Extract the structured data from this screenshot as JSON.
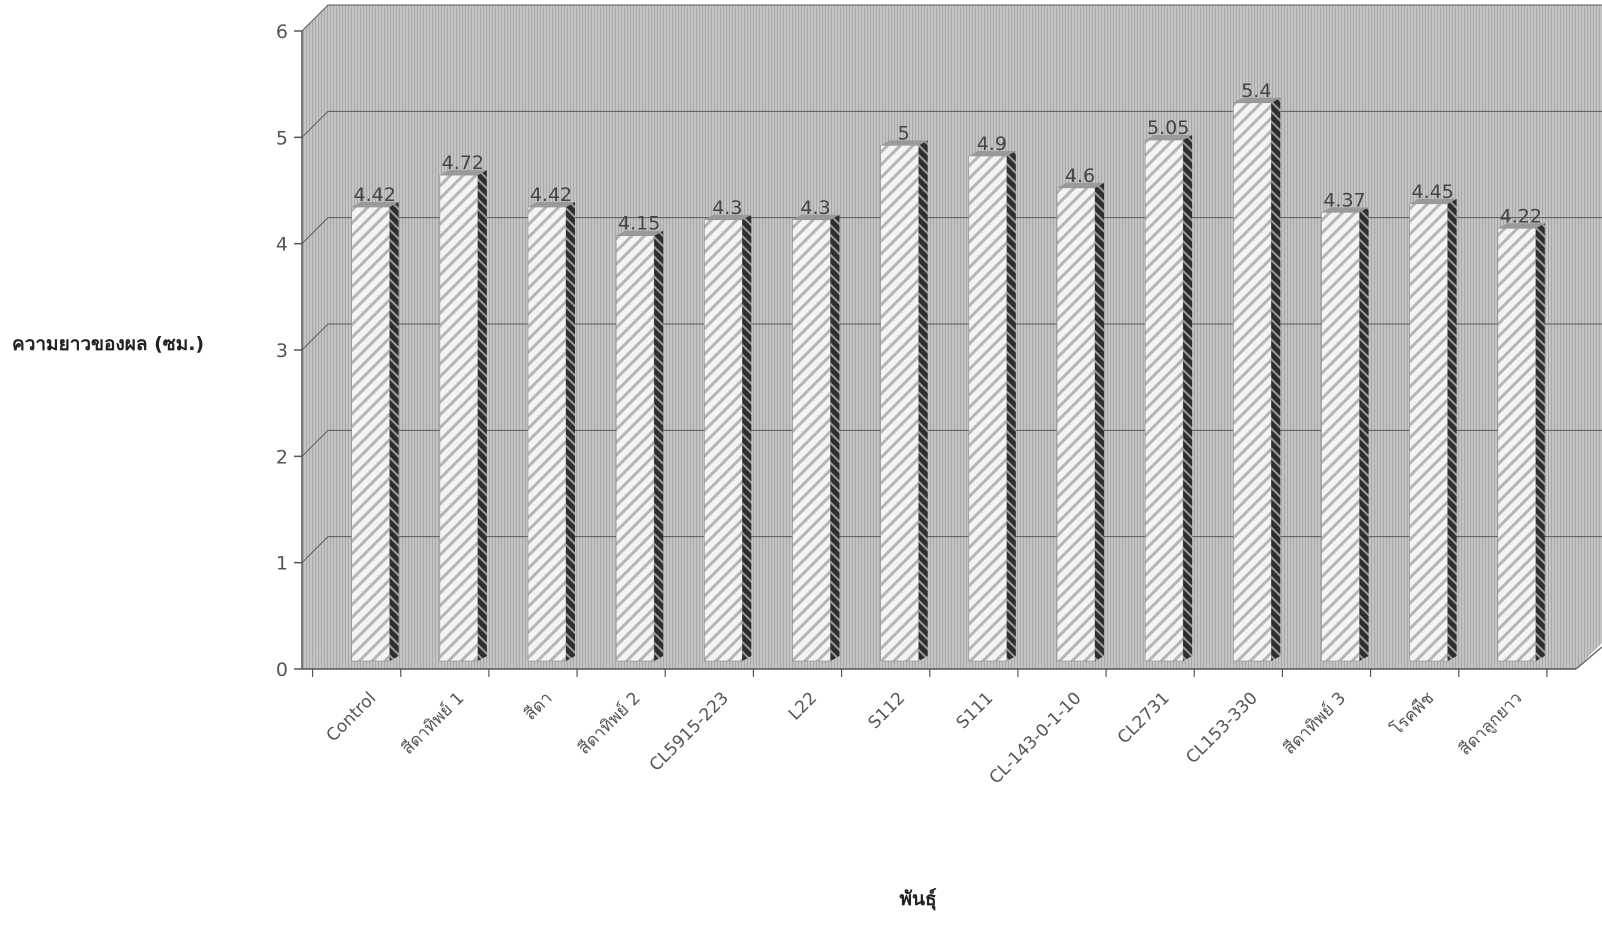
{
  "chart_data": {
    "type": "bar",
    "title": "",
    "xlabel": "พันธุ์",
    "ylabel": "ความยาวของผล (ซม.)",
    "ylim": [
      0,
      6
    ],
    "yticks": [
      "0",
      "1",
      "2",
      "3",
      "4",
      "5",
      "6"
    ],
    "grid": true,
    "legend": "none",
    "categories": [
      "Control",
      "สีดาทิพย์ 1",
      "สีดา",
      "สีดาทิพย์ 2",
      "CL5915-223",
      "L22",
      "S112",
      "S111",
      "CL-143-0-1-10",
      "CL2731",
      "CL153-330",
      "สีดาทิพย์ 3",
      "โรคพืช",
      "สีดาลูกยาว"
    ],
    "values": [
      4.42,
      4.72,
      4.42,
      4.15,
      4.3,
      4.3,
      5,
      4.9,
      4.6,
      5.05,
      5.4,
      4.37,
      4.45,
      4.22
    ],
    "value_labels": [
      "4.42",
      "4.72",
      "4.42",
      "4.15",
      "4.3",
      "4.3",
      "5",
      "4.9",
      "4.6",
      "5.05",
      "5.4",
      "4.37",
      "4.45",
      "4.22"
    ],
    "colors": {
      "wall": "#c4c4c4",
      "bar_front": "#f2f2f2",
      "bar_stripe": "#b8b8b8",
      "bar_side": "#3a3a3a",
      "grid": "#555555"
    }
  }
}
